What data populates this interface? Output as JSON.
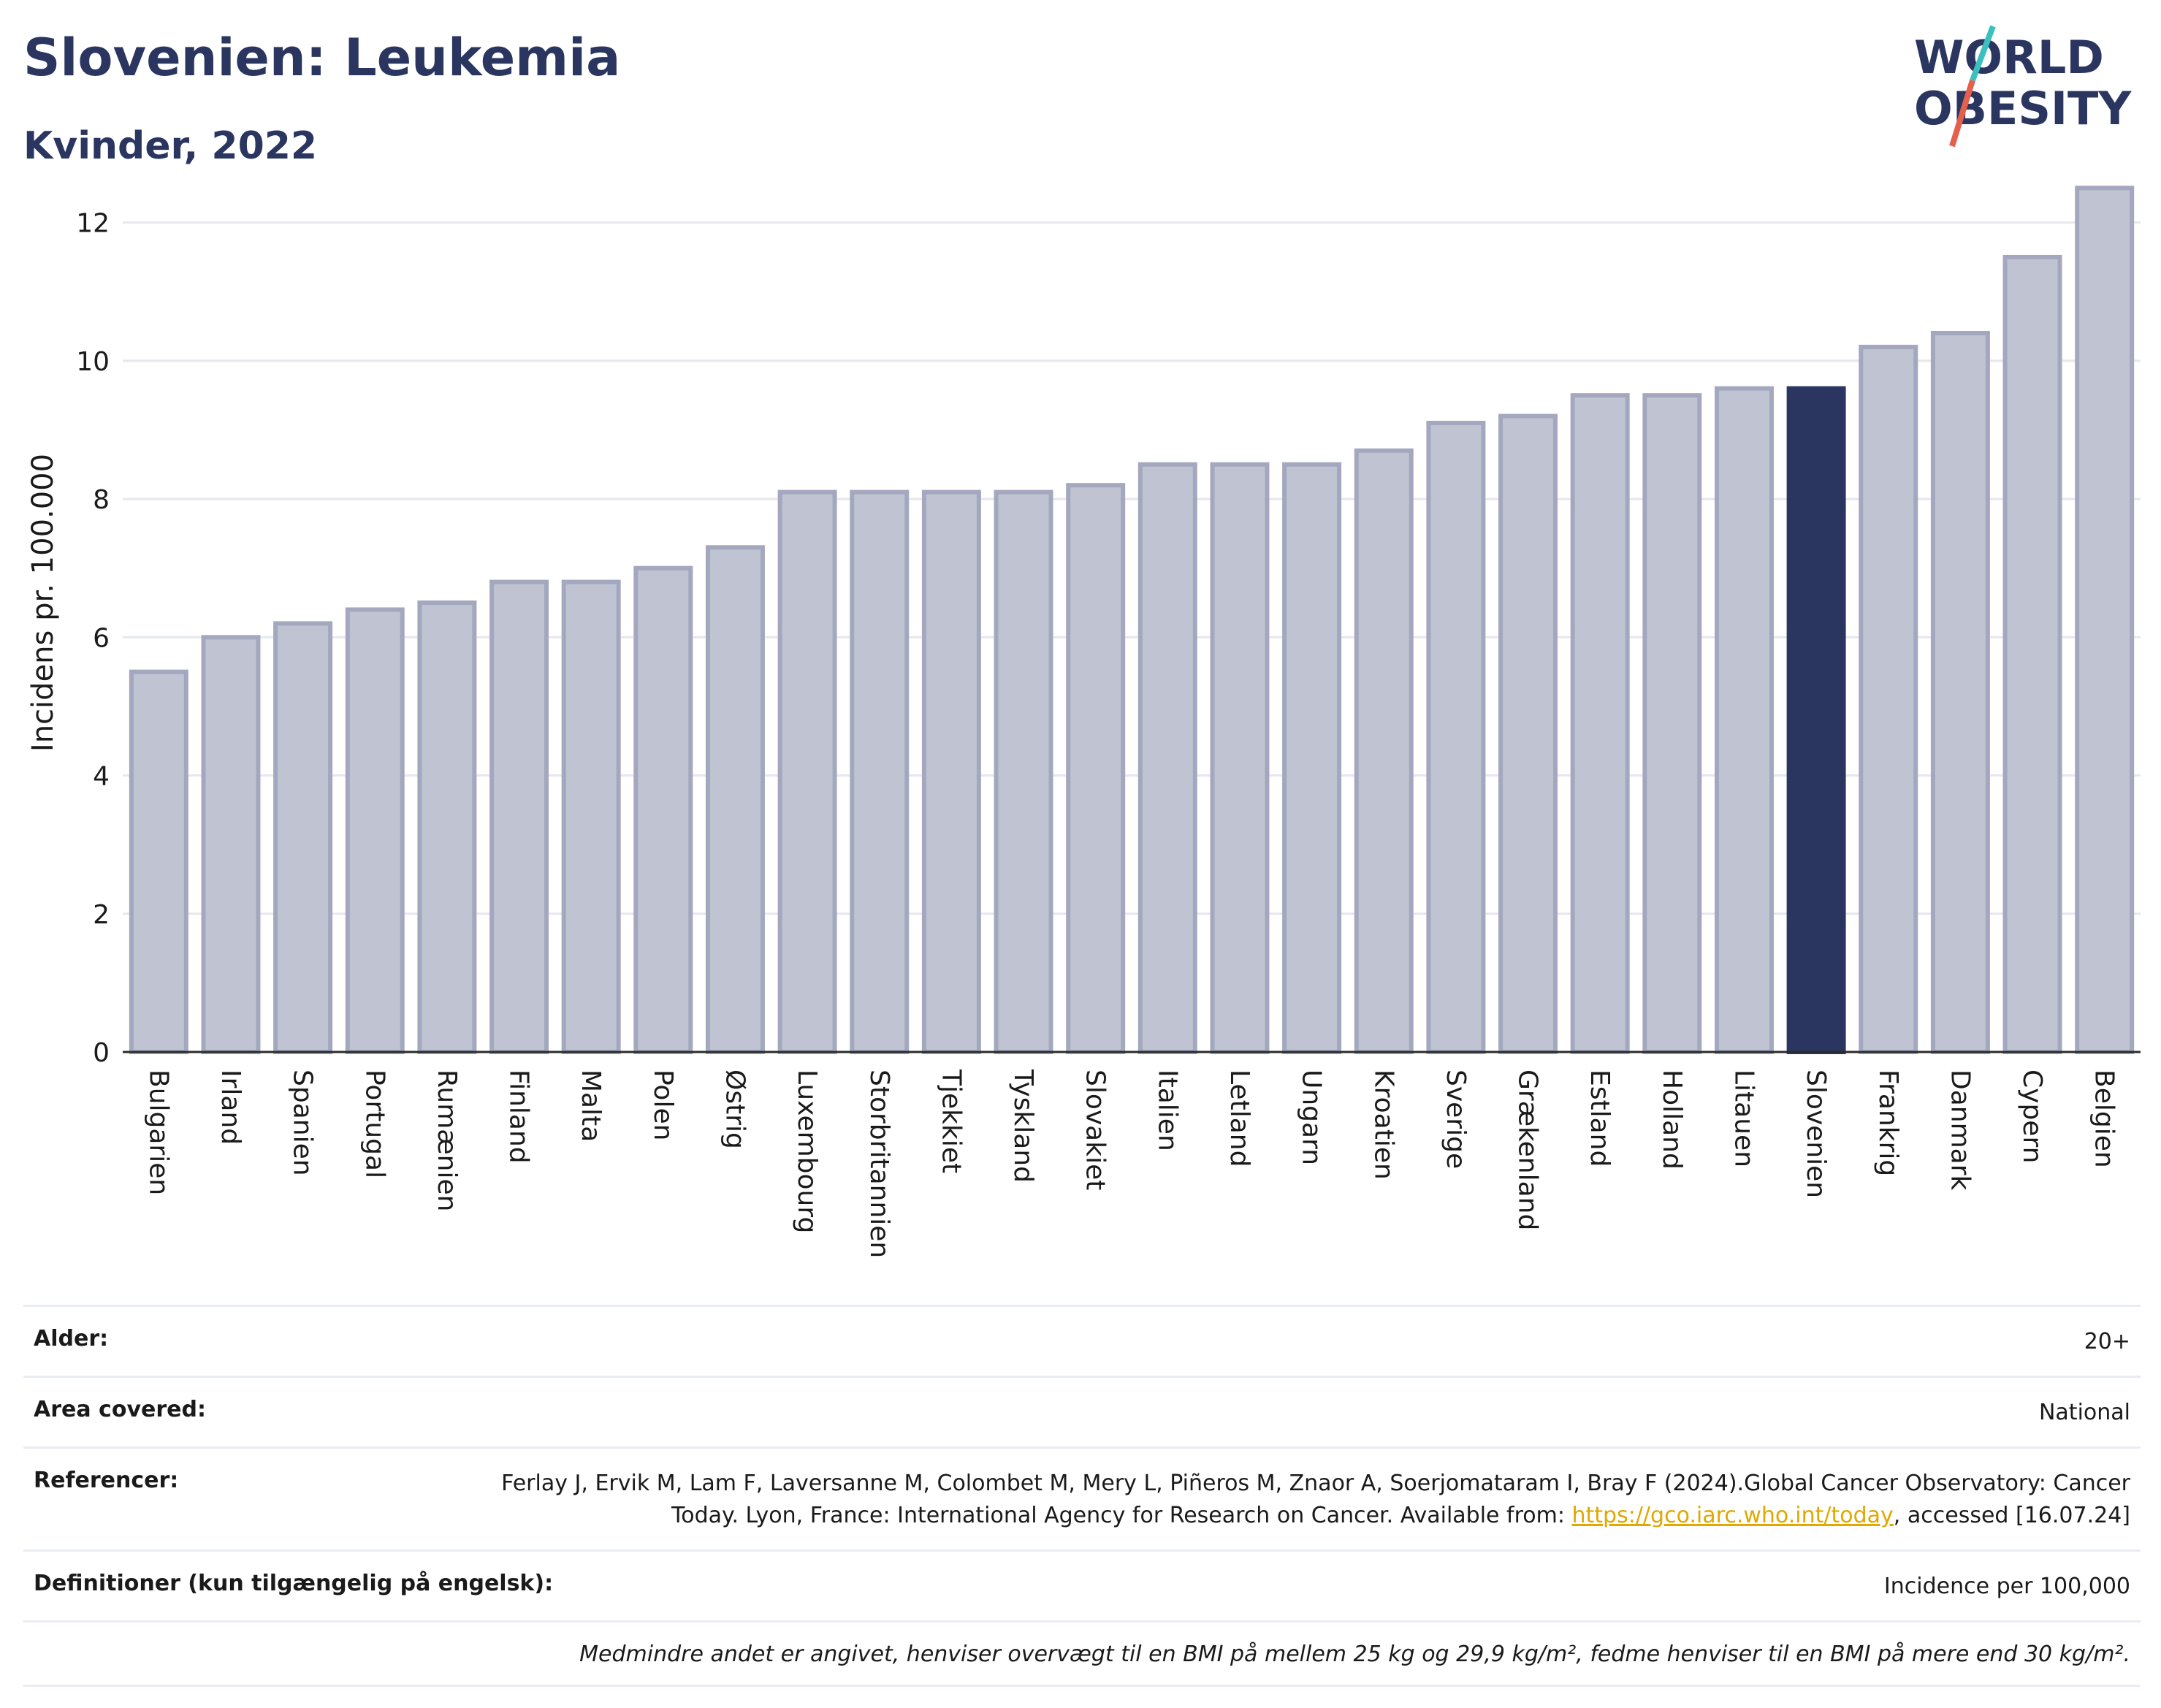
{
  "header": {
    "title": "Slovenien: Leukemia",
    "subtitle": "Kvinder, 2022"
  },
  "logo": {
    "line1": "WORLD",
    "line2": "OBESITY",
    "colors": {
      "text": "#2a3560",
      "slash_top": "#3bbfbf",
      "slash_bottom": "#e5604c"
    }
  },
  "chart_data": {
    "type": "bar",
    "title": "Slovenien: Leukemia",
    "subtitle": "Kvinder, 2022",
    "xlabel": "",
    "ylabel": "Incidens pr. 100.000",
    "ylim": [
      0,
      13
    ],
    "yticks": [
      0,
      2,
      4,
      6,
      8,
      10,
      12
    ],
    "grid": true,
    "highlight": "Slovenien",
    "colors": {
      "bar": "#c0c3d1",
      "bar_border": "#a3a8bf",
      "highlight": "#2a3560"
    },
    "categories": [
      "Bulgarien",
      "Irland",
      "Spanien",
      "Portugal",
      "Rumænien",
      "Finland",
      "Malta",
      "Polen",
      "Østrig",
      "Luxembourg",
      "Storbritannien",
      "Tjekkiet",
      "Tyskland",
      "Slovakiet",
      "Italien",
      "Letland",
      "Ungarn",
      "Kroatien",
      "Sverige",
      "Grækenland",
      "Estland",
      "Holland",
      "Litauen",
      "Slovenien",
      "Frankrig",
      "Danmark",
      "Cypern",
      "Belgien"
    ],
    "values": [
      5.5,
      6.0,
      6.2,
      6.4,
      6.5,
      6.8,
      6.8,
      7.0,
      7.3,
      8.1,
      8.1,
      8.1,
      8.1,
      8.2,
      8.5,
      8.5,
      8.5,
      8.7,
      9.1,
      9.2,
      9.5,
      9.5,
      9.6,
      9.6,
      10.2,
      10.4,
      11.5,
      12.5
    ]
  },
  "info": {
    "age_label": "Alder:",
    "age_value": "20+",
    "area_label": "Area covered:",
    "area_value": "National",
    "ref_label": "Referencer:",
    "ref_text": "Ferlay J, Ervik M, Lam F, Laversanne M, Colombet M, Mery L, Piñeros M, Znaor A, Soerjomataram I, Bray F (2024).Global Cancer Observatory: Cancer Today. Lyon, France: International Agency for Research on Cancer. Available from:",
    "ref_link": "https://gco.iarc.who.int/today",
    "ref_suffix": ", accessed [16.07.24]",
    "def_label": "Definitioner (kun tilgængelig på engelsk):",
    "def_value": "Incidence per 100,000",
    "note": "Medmindre andet er angivet, henviser overvægt til en BMI på mellem 25 kg og 29,9 kg/m², fedme henviser til en BMI på mere end 30 kg/m²."
  }
}
